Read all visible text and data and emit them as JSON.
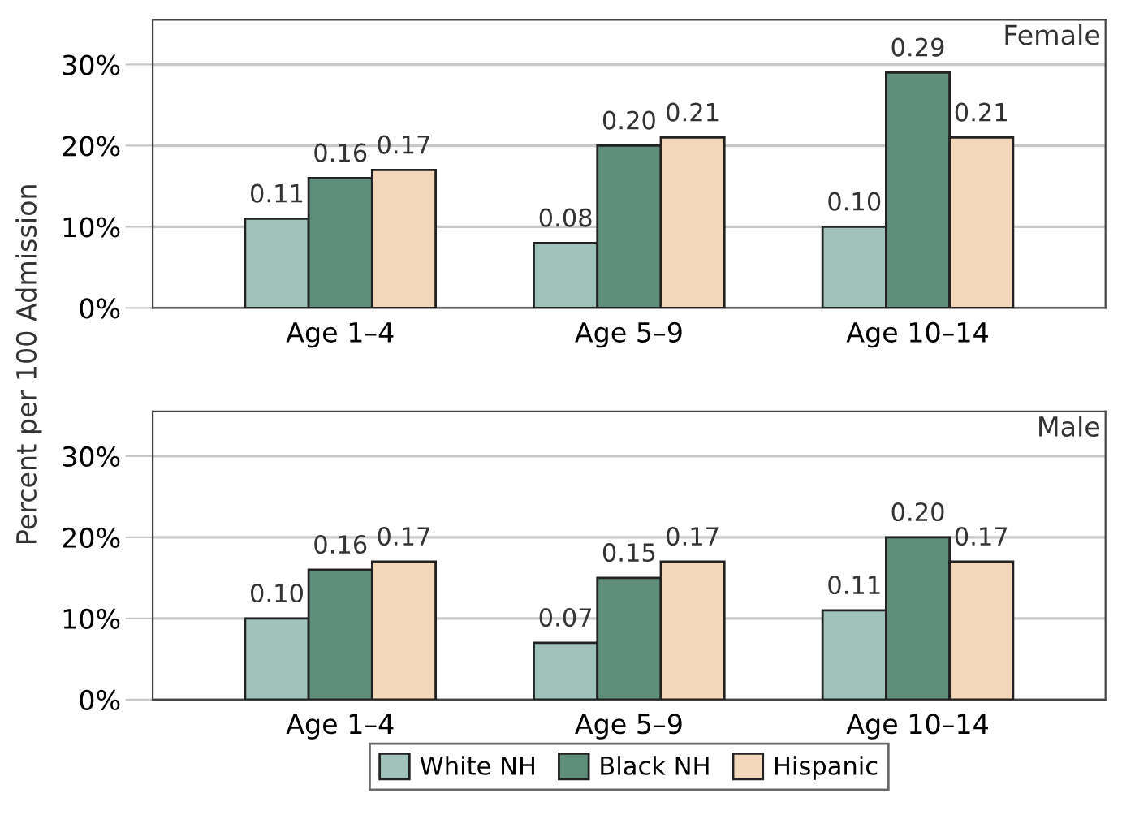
{
  "chart_data": [
    {
      "type": "bar",
      "categories": [
        "Age 1–4",
        "Age 5–9",
        "Age 10–14"
      ],
      "ylabel": "Percent per 100 Admission",
      "annotations": [
        "Female"
      ],
      "ylim": [
        0,
        0.355
      ],
      "yticks": [
        {
          "value": 0,
          "label": "0%"
        },
        {
          "value": 0.1,
          "label": "10%"
        },
        {
          "value": 0.2,
          "label": "20%"
        },
        {
          "value": 0.3,
          "label": "30%"
        }
      ],
      "grid": "y",
      "series": [
        {
          "color": "#9fc3bb",
          "values": [
            0.11,
            0.08,
            0.1
          ],
          "value_labels": [
            "0.11",
            "0.08",
            "0.10"
          ]
        },
        {
          "color": "#5f8e7b",
          "values": [
            0.16,
            0.2,
            0.29
          ],
          "value_labels": [
            "0.16",
            "0.20",
            "0.29"
          ]
        },
        {
          "color": "#f2d7bb",
          "values": [
            0.17,
            0.21,
            0.21
          ],
          "value_labels": [
            "0.17",
            "0.21",
            "0.21"
          ]
        }
      ]
    },
    {
      "type": "bar",
      "categories": [
        "Age 1–4",
        "Age 5–9",
        "Age 10–14"
      ],
      "annotations": [
        "Male"
      ],
      "ylim": [
        0,
        0.355
      ],
      "yticks": [
        {
          "value": 0,
          "label": "0%"
        },
        {
          "value": 0.1,
          "label": "10%"
        },
        {
          "value": 0.2,
          "label": "20%"
        },
        {
          "value": 0.3,
          "label": "30%"
        }
      ],
      "grid": "y",
      "legend": "bottom",
      "series": [
        {
          "name": "White NH",
          "color": "#9fc3bb",
          "values": [
            0.1,
            0.07,
            0.11
          ],
          "value_labels": [
            "0.10",
            "0.07",
            "0.11"
          ]
        },
        {
          "name": "Black NH",
          "color": "#5f8e7b",
          "values": [
            0.16,
            0.15,
            0.2
          ],
          "value_labels": [
            "0.16",
            "0.15",
            "0.20"
          ]
        },
        {
          "name": "Hispanic",
          "color": "#f2d7bb",
          "values": [
            0.17,
            0.17,
            0.17
          ],
          "value_labels": [
            "0.17",
            "0.17",
            "0.17"
          ]
        }
      ]
    }
  ]
}
